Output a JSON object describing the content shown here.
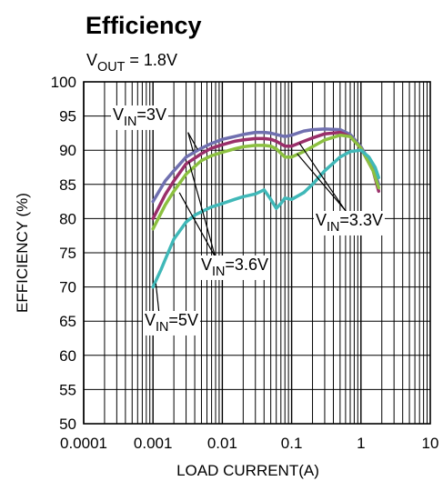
{
  "chart_data": {
    "type": "line",
    "title": "Efficiency",
    "subtitle": {
      "main": "V",
      "sub": "OUT",
      "rest": " = 1.8V"
    },
    "xlabel": "LOAD CURRENT(A)",
    "ylabel": "EFFICIENCY (%)",
    "x_scale": "log",
    "xlim": [
      0.0001,
      10
    ],
    "ylim": [
      50,
      100
    ],
    "x_ticks": [
      0.0001,
      0.001,
      0.01,
      0.1,
      1,
      10
    ],
    "x_tick_labels": [
      "0.0001",
      "0.001",
      "0.01",
      "0.1",
      "1",
      "10"
    ],
    "y_ticks": [
      50,
      55,
      60,
      65,
      70,
      75,
      80,
      85,
      90,
      95,
      100
    ],
    "y_tick_labels": [
      "50",
      "55",
      "60",
      "65",
      "70",
      "75",
      "80",
      "85",
      "90",
      "95",
      "100"
    ],
    "grid": true,
    "series": [
      {
        "color": "#7070b0",
        "x": [
          0.001,
          0.0015,
          0.002,
          0.003,
          0.005,
          0.007,
          0.01,
          0.015,
          0.02,
          0.03,
          0.04,
          0.05,
          0.06,
          0.08,
          0.1,
          0.15,
          0.2,
          0.3,
          0.5,
          0.7,
          1.0,
          1.5,
          1.8
        ],
        "y": [
          82.5,
          85.5,
          87.0,
          89.0,
          90.3,
          91.0,
          91.6,
          92.0,
          92.3,
          92.6,
          92.6,
          92.5,
          92.3,
          92.0,
          92.2,
          92.8,
          93.0,
          93.1,
          93.0,
          92.3,
          90.5,
          87.5,
          85.0
        ]
      },
      {
        "color": "#9a2f6a",
        "x": [
          0.001,
          0.0015,
          0.002,
          0.003,
          0.005,
          0.007,
          0.01,
          0.015,
          0.02,
          0.03,
          0.04,
          0.05,
          0.06,
          0.08,
          0.1,
          0.15,
          0.2,
          0.3,
          0.5,
          0.7,
          1.0,
          1.5,
          1.8
        ],
        "y": [
          80.0,
          83.5,
          85.5,
          88.0,
          89.5,
          90.3,
          90.8,
          91.3,
          91.5,
          91.7,
          91.7,
          91.6,
          91.3,
          90.6,
          90.6,
          91.3,
          91.8,
          92.4,
          92.6,
          92.0,
          90.3,
          87.0,
          84.0
        ]
      },
      {
        "color": "#8cc040",
        "x": [
          0.001,
          0.0015,
          0.002,
          0.003,
          0.005,
          0.007,
          0.01,
          0.015,
          0.02,
          0.03,
          0.04,
          0.05,
          0.06,
          0.08,
          0.1,
          0.15,
          0.2,
          0.3,
          0.5,
          0.7,
          1.0,
          1.5,
          1.8
        ],
        "y": [
          78.5,
          82.0,
          84.0,
          86.5,
          88.5,
          89.2,
          89.7,
          90.2,
          90.5,
          90.7,
          90.7,
          90.6,
          90.2,
          89.0,
          89.0,
          89.8,
          90.5,
          91.5,
          92.2,
          92.0,
          90.3,
          87.0,
          84.5
        ]
      },
      {
        "color": "#40b8b8",
        "x": [
          0.001,
          0.0013,
          0.0015,
          0.002,
          0.003,
          0.004,
          0.005,
          0.007,
          0.01,
          0.015,
          0.02,
          0.03,
          0.04,
          0.05,
          0.06,
          0.07,
          0.08,
          0.1,
          0.15,
          0.2,
          0.3,
          0.5,
          0.7,
          1.0,
          1.3,
          1.6,
          1.8
        ],
        "y": [
          70.0,
          72.5,
          74.0,
          77.0,
          79.5,
          80.5,
          81.0,
          81.7,
          82.2,
          82.8,
          83.2,
          83.6,
          84.2,
          82.8,
          81.5,
          82.2,
          83.0,
          82.8,
          83.8,
          85.0,
          87.0,
          89.0,
          89.8,
          90.0,
          89.0,
          87.5,
          86.0
        ]
      }
    ],
    "annotations": [
      {
        "main": "V",
        "sub": "IN",
        "rest": "=3V"
      },
      {
        "main": "V",
        "sub": "IN",
        "rest": "=3.3V"
      },
      {
        "main": "V",
        "sub": "IN",
        "rest": "=3.6V"
      },
      {
        "main": "V",
        "sub": "IN",
        "rest": "=5V"
      }
    ]
  }
}
